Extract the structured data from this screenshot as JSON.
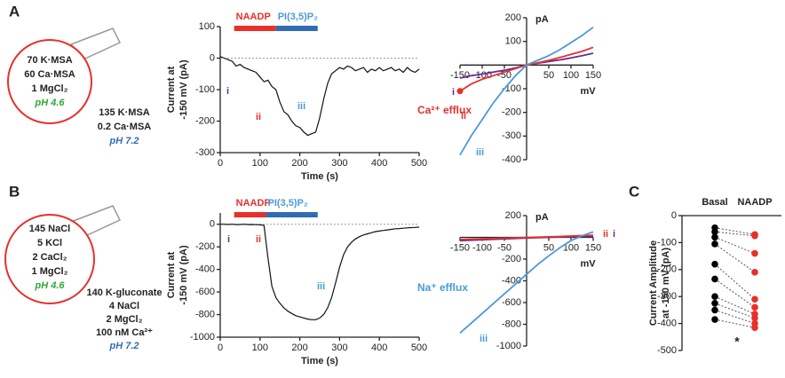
{
  "panel_labels": [
    "A",
    "B",
    "C"
  ],
  "schematics": [
    {
      "pipette": [
        "70 K·MSA",
        "60 Ca·MSA",
        "1 MgCl₂"
      ],
      "pipette_ph": "pH 4.6",
      "bath": [
        "135 K·MSA",
        "0.2 Ca·MSA"
      ],
      "bath_ph": "pH 7.2"
    },
    {
      "pipette": [
        "145 NaCl",
        "5 KCl",
        "2 CaCl₂",
        "1 MgCl₂"
      ],
      "pipette_ph": "pH 4.6",
      "bath": [
        "140 K-gluconate",
        "4 NaCl",
        "2 MgCl₂",
        "100 nM Ca²⁺"
      ],
      "bath_ph": "pH 7.2"
    }
  ],
  "chart_data": [
    {
      "type": "line",
      "x_label": "Time (s)",
      "y_label": [
        "Current at",
        "-150 mV (pA)"
      ],
      "x": [
        0,
        10,
        20,
        30,
        40,
        50,
        60,
        70,
        80,
        90,
        100,
        110,
        120,
        130,
        140,
        150,
        160,
        170,
        180,
        190,
        200,
        210,
        220,
        230,
        240,
        250,
        260,
        270,
        280,
        290,
        300,
        310,
        320,
        330,
        340,
        350,
        360,
        370,
        380,
        390,
        400,
        410,
        420,
        430,
        440,
        450,
        460,
        470,
        480,
        490,
        500
      ],
      "series": [
        {
          "color": "#111111",
          "values": [
            5,
            0,
            -5,
            -10,
            -25,
            -20,
            -30,
            -35,
            -40,
            -45,
            -60,
            -75,
            -70,
            -90,
            -100,
            -140,
            -170,
            -180,
            -200,
            -215,
            -220,
            -235,
            -245,
            -240,
            -235,
            -190,
            -130,
            -80,
            -50,
            -40,
            -30,
            -35,
            -25,
            -30,
            -40,
            -35,
            -30,
            -45,
            -35,
            -40,
            -30,
            -40,
            -35,
            -30,
            -40,
            -35,
            -45,
            -30,
            -40,
            -45,
            -35
          ]
        }
      ],
      "xlim": [
        0,
        500
      ],
      "xticks": [
        0,
        100,
        200,
        300,
        400,
        500
      ],
      "ylim": [
        -300,
        100
      ],
      "yticks": [
        -300,
        -200,
        -100,
        0,
        100
      ],
      "reference_line": 0,
      "treatments": [
        {
          "name": "NAADP",
          "color": "#e8302a",
          "label_color": "#e8302a",
          "start": 35,
          "end": 140
        },
        {
          "name": "PI(3,5)P₂",
          "color": "#2f6db3",
          "label_color": "#4a9ad8",
          "start": 140,
          "end": 245
        }
      ],
      "markers": [
        {
          "text": "i",
          "color": "#6a2c91"
        },
        {
          "text": "ii",
          "color": "#e8302a"
        },
        {
          "text": "iii",
          "color": "#4a9ad8"
        }
      ]
    },
    {
      "type": "line",
      "origin_axes": true,
      "x_label": "mV",
      "y_label": "pA",
      "x": [
        -150,
        -125,
        -100,
        -75,
        -50,
        -25,
        0,
        25,
        50,
        75,
        100,
        125,
        150
      ],
      "series": [
        {
          "name": "i",
          "color": "#6a2c91",
          "values": [
            -55,
            -45,
            -38,
            -30,
            -22,
            -12,
            0,
            8,
            15,
            22,
            30,
            40,
            50
          ]
        },
        {
          "name": "ii",
          "color": "#e8302a",
          "marker_first": true,
          "values": [
            -110,
            -80,
            -60,
            -45,
            -30,
            -15,
            0,
            10,
            20,
            32,
            45,
            58,
            75
          ]
        },
        {
          "name": "iii",
          "color": "#4a9ad8",
          "values": [
            -380,
            -300,
            -230,
            -160,
            -100,
            -45,
            0,
            20,
            40,
            65,
            95,
            125,
            160
          ]
        }
      ],
      "xlim": [
        -150,
        150
      ],
      "xticks": [
        -150,
        -100,
        -50,
        50,
        100,
        150
      ],
      "ylim": [
        -400,
        200
      ],
      "yticks": [
        -400,
        -300,
        -200,
        -100,
        100,
        200
      ],
      "annotation": "Ca²⁺ efflux",
      "annotation_color": "#e8302a"
    },
    {
      "type": "line",
      "x_label": "Time (s)",
      "y_label": [
        "Current at",
        "-150 mV (pA)"
      ],
      "x": [
        0,
        10,
        20,
        30,
        40,
        50,
        60,
        70,
        80,
        90,
        100,
        110,
        120,
        130,
        140,
        150,
        160,
        170,
        180,
        190,
        200,
        210,
        220,
        230,
        240,
        250,
        260,
        270,
        280,
        290,
        300,
        310,
        320,
        330,
        340,
        350,
        360,
        370,
        380,
        390,
        400,
        410,
        420,
        430,
        440,
        450,
        460,
        470,
        480,
        490,
        500
      ],
      "series": [
        {
          "color": "#111111",
          "values": [
            0,
            0,
            -2,
            0,
            -3,
            -2,
            0,
            -3,
            -2,
            -4,
            -5,
            -10,
            -300,
            -550,
            -650,
            -700,
            -740,
            -770,
            -790,
            -810,
            -820,
            -830,
            -840,
            -845,
            -845,
            -830,
            -800,
            -740,
            -650,
            -520,
            -380,
            -270,
            -200,
            -160,
            -130,
            -110,
            -95,
            -85,
            -75,
            -65,
            -60,
            -55,
            -50,
            -45,
            -40,
            -38,
            -35,
            -32,
            -30,
            -28,
            -25
          ]
        }
      ],
      "xlim": [
        0,
        500
      ],
      "xticks": [
        0,
        100,
        200,
        300,
        400,
        500
      ],
      "ylim": [
        -1000,
        100
      ],
      "yticks": [
        -1000,
        -800,
        -600,
        -400,
        -200,
        0
      ],
      "reference_line": 0,
      "treatments": [
        {
          "name": "NAADP",
          "color": "#e8302a",
          "label_color": "#e8302a",
          "start": 35,
          "end": 115
        },
        {
          "name": "PI(3,5)P₂",
          "color": "#2f6db3",
          "label_color": "#4a9ad8",
          "start": 115,
          "end": 245
        }
      ],
      "markers": [
        {
          "text": "i",
          "color": "#6a2c91"
        },
        {
          "text": "ii",
          "color": "#e8302a"
        },
        {
          "text": "iii",
          "color": "#4a9ad8"
        }
      ]
    },
    {
      "type": "line",
      "origin_axes": true,
      "x_label": "mV",
      "y_label": "pA",
      "x": [
        -150,
        -125,
        -100,
        -75,
        -50,
        -25,
        0,
        25,
        50,
        75,
        100,
        125,
        150
      ],
      "series": [
        {
          "name": "i",
          "color": "#6a2c91",
          "values": [
            -30,
            -26,
            -22,
            -18,
            -14,
            -10,
            -6,
            -3,
            0,
            3,
            6,
            8,
            10
          ]
        },
        {
          "name": "ii",
          "color": "#e8302a",
          "values": [
            -20,
            -16,
            -13,
            -10,
            -7,
            -4,
            -1,
            2,
            5,
            8,
            12,
            16,
            20
          ]
        },
        {
          "name": "iii",
          "color": "#4a9ad8",
          "values": [
            -880,
            -790,
            -700,
            -610,
            -520,
            -430,
            -340,
            -250,
            -170,
            -95,
            -30,
            15,
            50
          ]
        }
      ],
      "xlim": [
        -150,
        150
      ],
      "xticks": [
        -150,
        -100,
        -50,
        50,
        100,
        150
      ],
      "ylim": [
        -1000,
        200
      ],
      "yticks": [
        -1000,
        -800,
        -600,
        -400,
        -200,
        200
      ],
      "annotation": "Na⁺ efflux",
      "annotation_color": "#4a9ad8"
    },
    {
      "type": "paired",
      "y_label": [
        "Current Amplitude",
        "at -150 mV (pA)"
      ],
      "series": [
        {
          "name": "Basal",
          "color": "#000000",
          "values": [
            -45,
            -60,
            -80,
            -105,
            -180,
            -235,
            -300,
            -325,
            -350,
            -385
          ]
        },
        {
          "name": "NAADP",
          "color": "#e8302a",
          "values": [
            -70,
            -75,
            -140,
            -210,
            -310,
            -340,
            -365,
            -380,
            -400,
            -415
          ]
        }
      ],
      "ylim": [
        -500,
        0
      ],
      "yticks": [
        -500,
        -400,
        -300,
        -200,
        -100,
        0
      ],
      "annotation": "*"
    }
  ]
}
